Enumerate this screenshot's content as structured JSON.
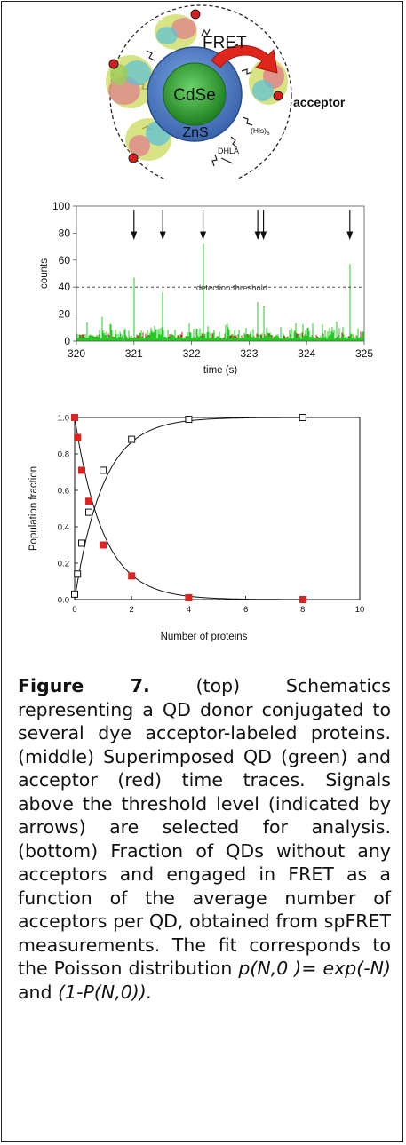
{
  "figure": {
    "schematic": {
      "fret_label": "FRET",
      "core_label": "CdSe",
      "shell_label": "ZnS",
      "acceptor_label": "acceptor",
      "his_label": "(His)",
      "his_subscript": "6",
      "dhla_label": "DHLA",
      "colors": {
        "core": "#2e9a2e",
        "shell": "#4f7fc6",
        "arrow": "#e0261c",
        "dye": "#d81e1e"
      }
    },
    "caption": {
      "label": "Figure 7.",
      "segments": [
        {
          "text": " (top) Schematics representing a QD donor conjugated to several dye acceptor-labeled proteins. (middle) Superimposed QD (green) and acceptor (red) time traces. Signals above the threshold level (indicated by arrows) are selected for analysis.  (bottom) Fraction of QDs without any acceptors and engaged in FRET as a function of the average number of acceptors per QD, obtained from spFRET measurements. The fit corresponds to the Poisson distribution ",
          "italic": false
        },
        {
          "text": "p(N,0 )= exp(-N)",
          "italic": true
        },
        {
          "text": " and ",
          "italic": false
        },
        {
          "text": "(1-P(N,0)).",
          "italic": true
        }
      ]
    }
  },
  "chart_data": [
    {
      "type": "line",
      "xlabel": "time (s)",
      "ylabel": "counts",
      "xlim": [
        320,
        325
      ],
      "ylim": [
        0,
        100
      ],
      "x_ticks": [
        320,
        321,
        322,
        323,
        324,
        325
      ],
      "y_ticks": [
        0,
        20,
        40,
        60,
        80,
        100
      ],
      "threshold": {
        "value": 40,
        "label": "detection threshold"
      },
      "arrows_at": [
        321.0,
        321.5,
        322.2,
        323.15,
        323.25,
        324.75
      ],
      "series": [
        {
          "color": "#22cc22",
          "peaks": [
            [
              321.0,
              47
            ],
            [
              321.5,
              36
            ],
            [
              322.2,
              72
            ],
            [
              323.15,
              29
            ],
            [
              323.25,
              25
            ],
            [
              324.75,
              57
            ],
            [
              320.45,
              18
            ],
            [
              322.6,
              12
            ],
            [
              324.1,
              13
            ]
          ]
        },
        {
          "color": "#dd1111",
          "peaks": [
            [
              321.0,
              12
            ],
            [
              322.2,
              20
            ],
            [
              323.15,
              17
            ],
            [
              323.25,
              26
            ],
            [
              321.5,
              8
            ],
            [
              324.75,
              7
            ]
          ]
        }
      ]
    },
    {
      "type": "scatter",
      "xlabel": "Number of proteins",
      "ylabel": "Population fraction",
      "xlim": [
        0,
        10
      ],
      "ylim": [
        0,
        1.0
      ],
      "x_ticks": [
        0,
        2,
        4,
        6,
        8,
        10
      ],
      "y_ticks": [
        0.0,
        0.2,
        0.4,
        0.6,
        0.8,
        1.0
      ],
      "y_tick_labels": [
        "0.0",
        "0.2",
        "0.4",
        "0.6",
        "0.8",
        "1.0"
      ],
      "series": [
        {
          "marker": "filled-square",
          "color": "#dd2222",
          "x": [
            0,
            0.1,
            0.25,
            0.5,
            1,
            2,
            4,
            8
          ],
          "y": [
            1.0,
            0.89,
            0.71,
            0.54,
            0.3,
            0.13,
            0.01,
            0.0
          ],
          "fit": "exp(-N)"
        },
        {
          "marker": "open-square",
          "color": "#000000",
          "x": [
            0,
            0.1,
            0.25,
            0.5,
            1,
            2,
            4,
            8
          ],
          "y": [
            0.03,
            0.14,
            0.31,
            0.48,
            0.71,
            0.88,
            0.99,
            1.0
          ],
          "fit": "1-exp(-N)"
        }
      ]
    }
  ]
}
